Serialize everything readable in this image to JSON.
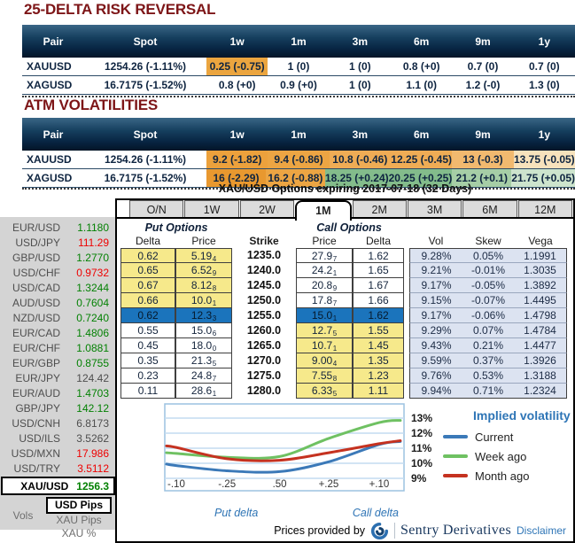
{
  "risk_reversal": {
    "title": "25-DELTA RISK REVERSAL",
    "columns": [
      "Pair",
      "Spot",
      "1w",
      "1m",
      "3m",
      "6m",
      "9m",
      "1y"
    ],
    "rows": [
      {
        "pair": "XAUUSD",
        "spot": "1254.26 (-1.11%)",
        "values": [
          "0.25 (-0.75)",
          "1 (0)",
          "1 (0)",
          "0.8 (+0)",
          "0.7 (0)",
          "0.7 (0)"
        ],
        "highlights": [
          "#EBA53F",
          "",
          "",
          "",
          "",
          ""
        ]
      },
      {
        "pair": "XAGUSD",
        "spot": "16.7175 (-1.52%)",
        "values": [
          "0.8 (+0)",
          "0.9 (+0)",
          "1 (0)",
          "1.1 (0)",
          "1.2 (-0)",
          "1.3 (0)"
        ],
        "highlights": [
          "",
          "",
          "",
          "",
          "",
          ""
        ]
      }
    ]
  },
  "atm": {
    "title": "ATM VOLATILITIES",
    "columns": [
      "Pair",
      "Spot",
      "1w",
      "1m",
      "3m",
      "6m",
      "9m",
      "1y"
    ],
    "rows": [
      {
        "pair": "XAUUSD",
        "spot": "1254.26 (-1.11%)",
        "values": [
          "9.2 (-1.82)",
          "9.4 (-0.86)",
          "10.8 (-0.46)",
          "12.25 (-0.45)",
          "13 (-0.3)",
          "13.75 (-0.05)"
        ],
        "highlights": [
          "#ECA13C",
          "#ECA543",
          "#EFAC55",
          "#EFAC55",
          "#F1B96F",
          "#F7E2BC"
        ]
      },
      {
        "pair": "XAGUSD",
        "spot": "16.7175 (-1.52%)",
        "values": [
          "16 (-2.29)",
          "16.2 (-0.88)",
          "18.25 (+0.24)",
          "20.25 (+0.25)",
          "21.2 (+0.1)",
          "21.75 (+0.05)"
        ],
        "highlights": [
          "#E8982F",
          "#ECA543",
          "#83BC8B",
          "#83BC8B",
          "#A6CEA6",
          "#CDE4CD"
        ]
      }
    ]
  },
  "sidebar": {
    "pairs": [
      {
        "pair": "EUR/USD",
        "price": "1.1180",
        "dir": "up"
      },
      {
        "pair": "USD/JPY",
        "price": "111.29",
        "dir": "down"
      },
      {
        "pair": "GBP/USD",
        "price": "1.2770",
        "dir": "up"
      },
      {
        "pair": "USD/CHF",
        "price": "0.9732",
        "dir": "down"
      },
      {
        "pair": "USD/CAD",
        "price": "1.3244",
        "dir": "up"
      },
      {
        "pair": "AUD/USD",
        "price": "0.7604",
        "dir": "up"
      },
      {
        "pair": "NZD/USD",
        "price": "0.7240",
        "dir": "up"
      },
      {
        "pair": "EUR/CAD",
        "price": "1.4806",
        "dir": "up"
      },
      {
        "pair": "EUR/CHF",
        "price": "1.0881",
        "dir": "up"
      },
      {
        "pair": "EUR/GBP",
        "price": "0.8755",
        "dir": "up"
      },
      {
        "pair": "EUR/JPY",
        "price": "124.42",
        "dir": "flat"
      },
      {
        "pair": "EUR/AUD",
        "price": "1.4703",
        "dir": "up"
      },
      {
        "pair": "GBP/JPY",
        "price": "142.12",
        "dir": "up"
      },
      {
        "pair": "USD/CNH",
        "price": "6.8173",
        "dir": "flat"
      },
      {
        "pair": "USD/ILS",
        "price": "3.5262",
        "dir": "flat"
      },
      {
        "pair": "USD/MXN",
        "price": "17.986",
        "dir": "down"
      },
      {
        "pair": "USD/TRY",
        "price": "3.5112",
        "dir": "down"
      }
    ],
    "selected": {
      "pair": "XAU/USD",
      "price": "1256.3",
      "dir": "up"
    },
    "vols_label": "Vols",
    "vol_modes": [
      {
        "label": "USD Pips",
        "selected": true
      },
      {
        "label": "XAU Pips",
        "selected": false
      },
      {
        "label": "XAU %",
        "selected": false
      }
    ]
  },
  "options": {
    "title": "XAU/USD Options expiring 2017-07-18 (32 Days)",
    "tabs": [
      {
        "label": "O/N",
        "active": false
      },
      {
        "label": "1W",
        "active": false
      },
      {
        "label": "2W",
        "active": false
      },
      {
        "label": "1M",
        "active": true
      },
      {
        "label": "2M",
        "active": false
      },
      {
        "label": "3M",
        "active": false
      },
      {
        "label": "6M",
        "active": false
      },
      {
        "label": "12M",
        "active": false
      }
    ],
    "put_header": "Put Options",
    "call_header": "Call Options",
    "columns": {
      "delta": "Delta",
      "price": "Price",
      "strike": "Strike",
      "vol": "Vol",
      "skew": "Skew",
      "vega": "Vega"
    },
    "rows": [
      {
        "put_delta": "0.62",
        "put_price": "5.19",
        "put_price_sub": "4",
        "strike": "1235.0",
        "call_price": "27.9",
        "call_price_sub": "7",
        "call_delta": "1.62",
        "vol": "9.28%",
        "skew": "0.05%",
        "vega": "1.1991",
        "zone": "put"
      },
      {
        "put_delta": "0.65",
        "put_price": "6.52",
        "put_price_sub": "9",
        "strike": "1240.0",
        "call_price": "24.2",
        "call_price_sub": "1",
        "call_delta": "1.65",
        "vol": "9.21%",
        "skew": "-0.01%",
        "vega": "1.3035",
        "zone": "put"
      },
      {
        "put_delta": "0.67",
        "put_price": "8.12",
        "put_price_sub": "8",
        "strike": "1245.0",
        "call_price": "20.8",
        "call_price_sub": "9",
        "call_delta": "1.67",
        "vol": "9.17%",
        "skew": "-0.05%",
        "vega": "1.3892",
        "zone": "put"
      },
      {
        "put_delta": "0.66",
        "put_price": "10.0",
        "put_price_sub": "1",
        "strike": "1250.0",
        "call_price": "17.8",
        "call_price_sub": "7",
        "call_delta": "1.66",
        "vol": "9.15%",
        "skew": "-0.07%",
        "vega": "1.4495",
        "zone": "put"
      },
      {
        "put_delta": "0.62",
        "put_price": "12.3",
        "put_price_sub": "3",
        "strike": "1255.0",
        "call_price": "15.0",
        "call_price_sub": "1",
        "call_delta": "1.62",
        "vol": "9.17%",
        "skew": "-0.06%",
        "vega": "1.4798",
        "zone": "atm"
      },
      {
        "put_delta": "0.55",
        "put_price": "15.0",
        "put_price_sub": "6",
        "strike": "1260.0",
        "call_price": "12.7",
        "call_price_sub": "5",
        "call_delta": "1.55",
        "vol": "9.29%",
        "skew": "0.07%",
        "vega": "1.4784",
        "zone": "call"
      },
      {
        "put_delta": "0.45",
        "put_price": "18.0",
        "put_price_sub": "0",
        "strike": "1265.0",
        "call_price": "10.7",
        "call_price_sub": "1",
        "call_delta": "1.45",
        "vol": "9.43%",
        "skew": "0.21%",
        "vega": "1.4477",
        "zone": "call"
      },
      {
        "put_delta": "0.35",
        "put_price": "21.3",
        "put_price_sub": "5",
        "strike": "1270.0",
        "call_price": "9.00",
        "call_price_sub": "4",
        "call_delta": "1.35",
        "vol": "9.59%",
        "skew": "0.37%",
        "vega": "1.3926",
        "zone": "call"
      },
      {
        "put_delta": "0.23",
        "put_price": "24.8",
        "put_price_sub": "7",
        "strike": "1275.0",
        "call_price": "7.55",
        "call_price_sub": "8",
        "call_delta": "1.23",
        "vol": "9.76%",
        "skew": "0.53%",
        "vega": "1.3188",
        "zone": "call"
      },
      {
        "put_delta": "0.11",
        "put_price": "28.6",
        "put_price_sub": "1",
        "strike": "1280.0",
        "call_price": "6.33",
        "call_price_sub": "5",
        "call_delta": "1.11",
        "vol": "9.94%",
        "skew": "0.71%",
        "vega": "1.2324",
        "zone": "call"
      }
    ]
  },
  "chart_data": {
    "type": "line",
    "title": "Implied volatility",
    "xlabel_left": "Put delta",
    "xlabel_right": "Call delta",
    "x_ticks": [
      "-.10",
      "-.25",
      ".50",
      "+.25",
      "+.10"
    ],
    "y_ticks": [
      "13%",
      "12%",
      "11%",
      "10%",
      "9%"
    ],
    "ylim": [
      8.2,
      13.5
    ],
    "grid": true,
    "legend_position": "right",
    "series": [
      {
        "name": "Current",
        "color": "#3B79B8",
        "points": [
          [
            0.007,
            9.95
          ],
          [
            0.048,
            9.85
          ],
          [
            0.26,
            9.5
          ],
          [
            0.48,
            9.45
          ],
          [
            0.685,
            10.1
          ],
          [
            0.896,
            11.25
          ],
          [
            0.985,
            11.45
          ]
        ]
      },
      {
        "name": "Week ago",
        "color": "#6FC162",
        "points": [
          [
            0.007,
            10.7
          ],
          [
            0.048,
            10.65
          ],
          [
            0.26,
            10.4
          ],
          [
            0.48,
            10.45
          ],
          [
            0.685,
            11.65
          ],
          [
            0.896,
            12.7
          ],
          [
            0.985,
            12.85
          ]
        ]
      },
      {
        "name": "Month ago",
        "color": "#C53220",
        "points": [
          [
            0.007,
            11.15
          ],
          [
            0.048,
            11.05
          ],
          [
            0.26,
            10.3
          ],
          [
            0.48,
            10.2
          ],
          [
            0.685,
            10.7
          ],
          [
            0.896,
            11.3
          ],
          [
            0.985,
            11.5
          ]
        ]
      }
    ]
  },
  "footer": {
    "prefix": "Prices provided by",
    "brand": "Sentry Derivatives",
    "link": "Disclaimer"
  }
}
